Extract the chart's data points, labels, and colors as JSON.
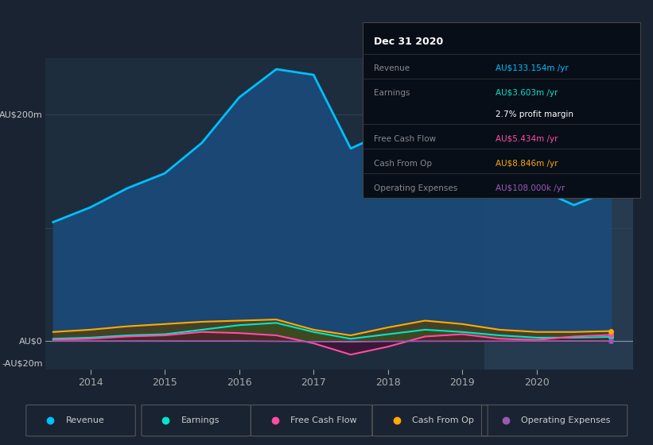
{
  "bg_color": "#1a2332",
  "plot_bg_color": "#1e2d3d",
  "forecast_bg_color": "#263a50",
  "years_x": [
    2013.5,
    2014.0,
    2014.5,
    2015.0,
    2015.5,
    2016.0,
    2016.5,
    2017.0,
    2017.5,
    2018.0,
    2018.5,
    2019.0,
    2019.5,
    2020.0,
    2020.5,
    2021.0
  ],
  "revenue": [
    105,
    118,
    135,
    148,
    175,
    215,
    240,
    235,
    170,
    185,
    210,
    195,
    165,
    135,
    120,
    133
  ],
  "earnings": [
    2,
    3,
    5,
    6,
    10,
    14,
    16,
    8,
    2,
    6,
    10,
    8,
    5,
    3,
    3,
    3.6
  ],
  "free_cash_flow": [
    1,
    2,
    4,
    5,
    8,
    7,
    5,
    -2,
    -12,
    -5,
    4,
    6,
    2,
    1,
    4,
    5.4
  ],
  "cash_from_op": [
    8,
    10,
    13,
    15,
    17,
    18,
    19,
    10,
    5,
    12,
    18,
    15,
    10,
    8,
    8,
    8.8
  ],
  "operating_expenses": [
    0.1,
    0.1,
    0.1,
    0.1,
    0.1,
    0.1,
    -0.2,
    -0.5,
    -0.8,
    -0.3,
    -0.1,
    -0.1,
    -0.1,
    0.1,
    0.1,
    0.108
  ],
  "revenue_color": "#00bfff",
  "earnings_color": "#00e5cc",
  "free_cash_flow_color": "#ff4da6",
  "cash_from_op_color": "#ffaa00",
  "operating_expenses_color": "#9b59b6",
  "revenue_fill": "#1a4a7a",
  "earnings_fill": "#006655",
  "cfo_fill": "#5a4000",
  "fcf_fill": "#5a0030",
  "opex_fill": "#3a1a4a",
  "ylim": [
    -25,
    250
  ],
  "forecast_start_x": 2019.3,
  "info_box": {
    "title": "Dec 31 2020",
    "rows": [
      {
        "label": "Revenue",
        "value": "AU$133.154m /yr",
        "value_color": "#00bfff"
      },
      {
        "label": "Earnings",
        "value": "AU$3.603m /yr",
        "value_color": "#00e5cc"
      },
      {
        "label": "",
        "value": "2.7% profit margin",
        "value_color": "#ffffff"
      },
      {
        "label": "Free Cash Flow",
        "value": "AU$5.434m /yr",
        "value_color": "#ff4da6"
      },
      {
        "label": "Cash From Op",
        "value": "AU$8.846m /yr",
        "value_color": "#ffaa00"
      },
      {
        "label": "Operating Expenses",
        "value": "AU$108.000k /yr",
        "value_color": "#9b59b6"
      }
    ]
  },
  "legend_items": [
    {
      "label": "Revenue",
      "color": "#00bfff"
    },
    {
      "label": "Earnings",
      "color": "#00e5cc"
    },
    {
      "label": "Free Cash Flow",
      "color": "#ff4da6"
    },
    {
      "label": "Cash From Op",
      "color": "#ffaa00"
    },
    {
      "label": "Operating Expenses",
      "color": "#9b59b6"
    }
  ],
  "xtick_positions": [
    2014.0,
    2015.0,
    2016.0,
    2017.0,
    2018.0,
    2019.0,
    2020.0
  ],
  "xtick_labels": [
    "2014",
    "2015",
    "2016",
    "2017",
    "2018",
    "2019",
    "2020"
  ]
}
